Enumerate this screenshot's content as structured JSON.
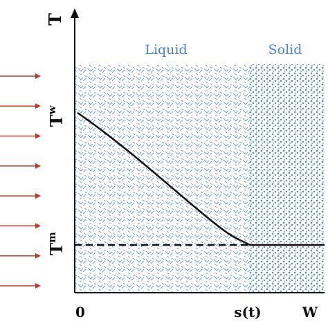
{
  "regions": {
    "liquid_label": "Liquid",
    "solid_label": "Solid"
  },
  "axes": {
    "y_label": "T",
    "x_origin_label": "0",
    "x_interface_label": "s(t)",
    "x_end_label": "W"
  },
  "temperatures": {
    "wall": {
      "base": "T",
      "sub": "w"
    },
    "melt": {
      "base": "T",
      "sub": "m"
    }
  },
  "heat_flux": {
    "arrow_count": 8
  },
  "colors": {
    "liquid_pattern": "#6a9fd6",
    "solid_pattern": "#4a86c8",
    "label": "#4a86c8",
    "arrow": "#c0392b",
    "axis": "#111111"
  }
}
